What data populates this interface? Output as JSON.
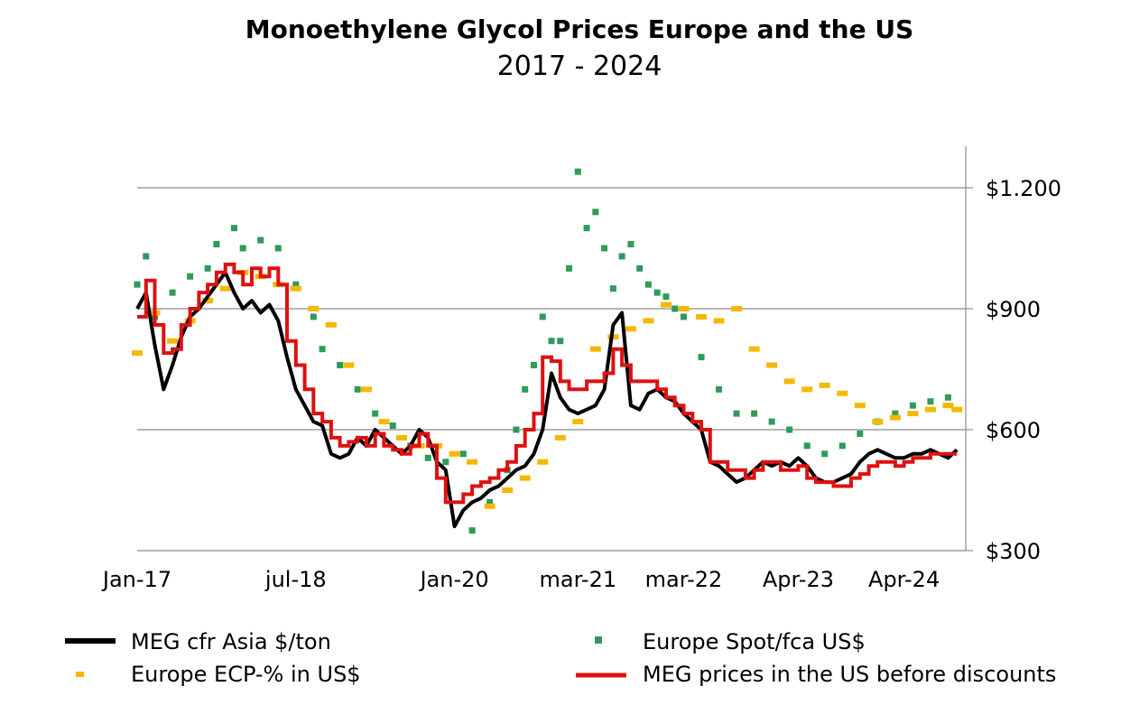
{
  "chart_data": {
    "type": "line",
    "title": "Monoethylene Glycol Prices Europe and the US",
    "subtitle": "2017 - 2024",
    "x_tick_labels": [
      "Jan-17",
      "jul-18",
      "Jan-20",
      "mar-21",
      "mar-22",
      "Apr-23",
      "Apr-24"
    ],
    "x_tick_values": [
      "2017-01",
      "2018-07",
      "2020-01",
      "2021-03",
      "2022-03",
      "2023-04",
      "2024-04"
    ],
    "y_tick_labels": [
      "$300",
      "$600",
      "$900",
      "$1.200"
    ],
    "y_tick_values": [
      300,
      600,
      900,
      1200
    ],
    "ylim": [
      300,
      1200
    ],
    "y_axis_side": "right",
    "grid": true,
    "legend_position": "bottom",
    "colors": {
      "asia": "#000000",
      "spot": "#2e9a5c",
      "ecp": "#f5b800",
      "us": "#dd1111",
      "grid": "#8c8c8c"
    },
    "series": [
      {
        "name": "MEG cfr Asia $/ton",
        "style": "line",
        "color": "#000000",
        "x": [
          "2017-01",
          "2017-02",
          "2017-03",
          "2017-04",
          "2017-05",
          "2017-06",
          "2017-07",
          "2017-08",
          "2017-09",
          "2017-10",
          "2017-11",
          "2017-12",
          "2018-01",
          "2018-02",
          "2018-03",
          "2018-04",
          "2018-05",
          "2018-06",
          "2018-07",
          "2018-08",
          "2018-09",
          "2018-10",
          "2018-11",
          "2018-12",
          "2019-01",
          "2019-02",
          "2019-03",
          "2019-04",
          "2019-05",
          "2019-06",
          "2019-07",
          "2019-08",
          "2019-09",
          "2019-10",
          "2019-11",
          "2019-12",
          "2020-01",
          "2020-02",
          "2020-03",
          "2020-04",
          "2020-05",
          "2020-06",
          "2020-07",
          "2020-08",
          "2020-09",
          "2020-10",
          "2020-11",
          "2020-12",
          "2021-01",
          "2021-02",
          "2021-03",
          "2021-04",
          "2021-05",
          "2021-06",
          "2021-07",
          "2021-08",
          "2021-09",
          "2021-10",
          "2021-11",
          "2021-12",
          "2022-01",
          "2022-02",
          "2022-03",
          "2022-04",
          "2022-05",
          "2022-06",
          "2022-07",
          "2022-08",
          "2022-09",
          "2022-10",
          "2022-11",
          "2022-12",
          "2023-01",
          "2023-02",
          "2023-03",
          "2023-04",
          "2023-05",
          "2023-06",
          "2023-07",
          "2023-08",
          "2023-09",
          "2023-10",
          "2023-11",
          "2023-12",
          "2024-01",
          "2024-02",
          "2024-03",
          "2024-04",
          "2024-05",
          "2024-06",
          "2024-07",
          "2024-08",
          "2024-09",
          "2024-10"
        ],
        "y": [
          900,
          940,
          810,
          700,
          760,
          830,
          880,
          900,
          930,
          960,
          990,
          940,
          900,
          920,
          890,
          910,
          870,
          780,
          700,
          660,
          620,
          610,
          540,
          530,
          540,
          580,
          560,
          600,
          580,
          560,
          540,
          560,
          600,
          580,
          520,
          500,
          360,
          400,
          420,
          430,
          450,
          460,
          480,
          500,
          510,
          540,
          600,
          740,
          680,
          650,
          640,
          650,
          660,
          700,
          860,
          890,
          660,
          650,
          690,
          700,
          680,
          670,
          640,
          620,
          600,
          520,
          510,
          490,
          470,
          480,
          500,
          520,
          510,
          520,
          510,
          530,
          510,
          480,
          470,
          470,
          480,
          490,
          520,
          540,
          550,
          540,
          530,
          530,
          540,
          540,
          550,
          540,
          530,
          550
        ],
        "labels_note": ""
      },
      {
        "name": "MEG prices in the US before discounts",
        "style": "step",
        "color": "#dd1111",
        "x": [
          "2017-01",
          "2017-02",
          "2017-03",
          "2017-04",
          "2017-05",
          "2017-06",
          "2017-07",
          "2017-08",
          "2017-09",
          "2017-10",
          "2017-11",
          "2017-12",
          "2018-01",
          "2018-02",
          "2018-03",
          "2018-04",
          "2018-05",
          "2018-06",
          "2018-07",
          "2018-08",
          "2018-09",
          "2018-10",
          "2018-11",
          "2018-12",
          "2019-01",
          "2019-02",
          "2019-03",
          "2019-04",
          "2019-05",
          "2019-06",
          "2019-07",
          "2019-08",
          "2019-09",
          "2019-10",
          "2019-11",
          "2019-12",
          "2020-01",
          "2020-02",
          "2020-03",
          "2020-04",
          "2020-05",
          "2020-06",
          "2020-07",
          "2020-08",
          "2020-09",
          "2020-10",
          "2020-11",
          "2020-12",
          "2021-01",
          "2021-02",
          "2021-03",
          "2021-04",
          "2021-05",
          "2021-06",
          "2021-07",
          "2021-08",
          "2021-09",
          "2021-10",
          "2021-11",
          "2021-12",
          "2022-01",
          "2022-02",
          "2022-03",
          "2022-04",
          "2022-05",
          "2022-06",
          "2022-07",
          "2022-08",
          "2022-09",
          "2022-10",
          "2022-11",
          "2022-12",
          "2023-01",
          "2023-02",
          "2023-03",
          "2023-04",
          "2023-05",
          "2023-06",
          "2023-07",
          "2023-08",
          "2023-09",
          "2023-10",
          "2023-11",
          "2023-12",
          "2024-01",
          "2024-02",
          "2024-03",
          "2024-04",
          "2024-05",
          "2024-06",
          "2024-07",
          "2024-08",
          "2024-09",
          "2024-10"
        ],
        "y": [
          880,
          970,
          860,
          790,
          800,
          860,
          900,
          940,
          960,
          990,
          1010,
          990,
          960,
          1000,
          980,
          1000,
          960,
          820,
          760,
          700,
          640,
          620,
          580,
          560,
          570,
          580,
          560,
          590,
          560,
          550,
          540,
          560,
          590,
          560,
          480,
          420,
          420,
          440,
          460,
          470,
          480,
          500,
          520,
          560,
          600,
          640,
          780,
          770,
          720,
          700,
          700,
          720,
          720,
          740,
          800,
          760,
          720,
          720,
          720,
          700,
          680,
          660,
          640,
          620,
          600,
          520,
          520,
          500,
          500,
          480,
          500,
          520,
          520,
          500,
          500,
          510,
          480,
          470,
          470,
          460,
          460,
          480,
          490,
          510,
          520,
          520,
          510,
          520,
          530,
          530,
          540,
          540,
          540,
          540
        ]
      },
      {
        "name": "Europe ECP-% in US$",
        "style": "dash",
        "color": "#f5b800",
        "x": [
          "2017-01",
          "2017-03",
          "2017-05",
          "2017-07",
          "2017-09",
          "2017-11",
          "2018-01",
          "2018-03",
          "2018-05",
          "2018-07",
          "2018-09",
          "2018-11",
          "2019-01",
          "2019-03",
          "2019-05",
          "2019-07",
          "2019-09",
          "2019-11",
          "2020-01",
          "2020-03",
          "2020-05",
          "2020-07",
          "2020-09",
          "2020-11",
          "2021-01",
          "2021-03",
          "2021-05",
          "2021-07",
          "2021-09",
          "2021-11",
          "2022-01",
          "2022-03",
          "2022-05",
          "2022-07",
          "2022-09",
          "2022-11",
          "2023-01",
          "2023-03",
          "2023-05",
          "2023-07",
          "2023-09",
          "2023-11",
          "2024-01",
          "2024-03",
          "2024-05",
          "2024-07",
          "2024-09",
          "2024-10"
        ],
        "y": [
          790,
          890,
          820,
          870,
          920,
          950,
          990,
          980,
          960,
          950,
          900,
          860,
          760,
          700,
          620,
          580,
          560,
          560,
          540,
          520,
          410,
          450,
          480,
          520,
          580,
          620,
          800,
          830,
          850,
          870,
          910,
          900,
          880,
          870,
          900,
          800,
          760,
          720,
          700,
          710,
          690,
          660,
          620,
          630,
          640,
          650,
          660,
          650
        ]
      },
      {
        "name": "Europe Spot/fca US$",
        "style": "scatter",
        "color": "#2e9a5c",
        "x": [
          "2017-01",
          "2017-02",
          "2017-03",
          "2017-05",
          "2017-07",
          "2017-09",
          "2017-10",
          "2017-12",
          "2018-01",
          "2018-03",
          "2018-05",
          "2018-07",
          "2018-09",
          "2018-10",
          "2018-12",
          "2019-02",
          "2019-04",
          "2019-06",
          "2019-08",
          "2019-10",
          "2019-12",
          "2020-02",
          "2020-03",
          "2020-05",
          "2020-07",
          "2020-08",
          "2020-09",
          "2020-10",
          "2020-11",
          "2020-12",
          "2021-01",
          "2021-02",
          "2021-03",
          "2021-04",
          "2021-05",
          "2021-06",
          "2021-07",
          "2021-08",
          "2021-09",
          "2021-10",
          "2021-11",
          "2021-12",
          "2022-01",
          "2022-02",
          "2022-03",
          "2022-05",
          "2022-07",
          "2022-09",
          "2022-11",
          "2023-01",
          "2023-03",
          "2023-05",
          "2023-07",
          "2023-09",
          "2023-11",
          "2024-01",
          "2024-03",
          "2024-05",
          "2024-07",
          "2024-09"
        ],
        "y": [
          960,
          1030,
          880,
          940,
          980,
          1000,
          1060,
          1100,
          1050,
          1070,
          1050,
          960,
          880,
          800,
          760,
          700,
          640,
          610,
          560,
          530,
          520,
          540,
          350,
          420,
          500,
          600,
          700,
          760,
          880,
          820,
          820,
          1000,
          1240,
          1100,
          1140,
          1050,
          950,
          1030,
          1060,
          1000,
          960,
          940,
          930,
          900,
          880,
          780,
          700,
          640,
          640,
          620,
          600,
          560,
          540,
          560,
          590,
          620,
          640,
          660,
          670,
          680
        ]
      }
    ]
  },
  "legend": [
    {
      "label": "MEG cfr Asia $/ton"
    },
    {
      "label": "Europe Spot/fca US$"
    },
    {
      "label": "Europe ECP-% in US$"
    },
    {
      "label": "MEG prices in the US before discounts"
    }
  ]
}
